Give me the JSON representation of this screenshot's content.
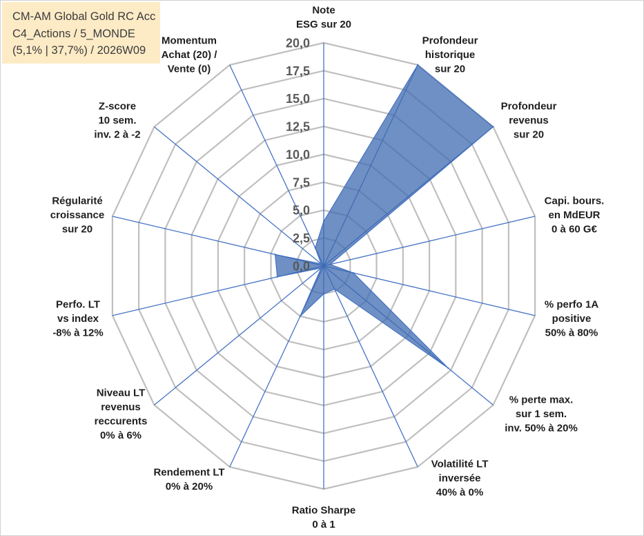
{
  "chart_data": {
    "type": "radar",
    "title": [
      "CM-AM Global Gold RC Acc",
      "C4_Actions / 5_MONDE",
      "(5,1% | 37,7%) / 2026W09"
    ],
    "categories": [
      [
        "Note",
        "ESG sur 20"
      ],
      [
        "Profondeur",
        "historique",
        "sur 20"
      ],
      [
        "Profondeur",
        "revenus",
        "sur 20"
      ],
      [
        "Capi. bours.",
        "en MdEUR",
        "0 à 60 G€"
      ],
      [
        "% perfo 1A",
        "positive",
        "50% à 80%"
      ],
      [
        "% perte max.",
        "sur 1 sem.",
        "inv. 50% à 20%"
      ],
      [
        "Volatilité LT",
        "inversée",
        "40% à 0%"
      ],
      [
        "Ratio Sharpe",
        "0 à 1"
      ],
      [
        "Rendement LT",
        "0% à 20%"
      ],
      [
        "Niveau LT",
        "revenus",
        "reccurents",
        "0% à 6%"
      ],
      [
        "Perfo. LT",
        "vs index",
        "-8% à 12%"
      ],
      [
        "Régularité",
        "croissance",
        "sur 20"
      ],
      [
        "Z-score",
        "10 sem.",
        "inv. 2 à -2"
      ],
      [
        "Momentum",
        "Achat (20) /",
        "Vente (0)"
      ]
    ],
    "series": [
      {
        "values": [
          4.0,
          20.0,
          20.0,
          0.6,
          2.8,
          14.7,
          2.3,
          2.5,
          5.0,
          0.3,
          4.4,
          4.6,
          0.3,
          1.8
        ]
      }
    ],
    "rlim": [
      0,
      20
    ],
    "tick_values": [
      0,
      2.5,
      5,
      7.5,
      10,
      12.5,
      15,
      17.5,
      20
    ],
    "tick_labels": [
      "0,0",
      "2,5",
      "5,0",
      "7,5",
      "10,0",
      "12,5",
      "15,0",
      "17,5",
      "20,0"
    ],
    "grid": true,
    "show_legend": false,
    "colors": {
      "series_fill": "#3F6BB0",
      "series_line": "#4472C4",
      "spokes": "#4472C4",
      "grid": "#BFBFBF",
      "title_box": "#FDEBC6",
      "border": "#D0D0D0"
    }
  }
}
